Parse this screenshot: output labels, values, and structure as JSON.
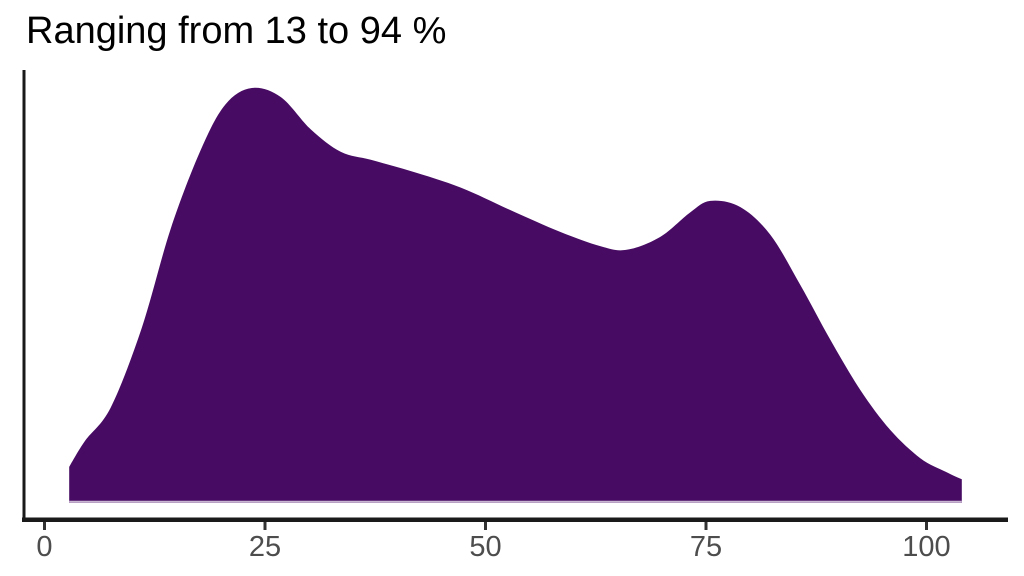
{
  "title": "Ranging from 13 to 94 %",
  "colors": {
    "background": "#ffffff",
    "density_fill": "#470b63",
    "density_bottom_edge": "#c9b6d3",
    "axis_line": "#1a1a1a",
    "tick_mark": "#333333",
    "tick_label": "#4d4d4d",
    "title_text": "#000000"
  },
  "chart_data": {
    "type": "area",
    "subtype": "density",
    "title": "Ranging from 13 to 94 %",
    "xlabel": "",
    "ylabel": "",
    "x_ticks": [
      0,
      25,
      50,
      75,
      100
    ],
    "x_axis_visible_range": [
      -2.5,
      109
    ],
    "value_range_from_title_pct": [
      13,
      94
    ],
    "grid": false,
    "legend": "none",
    "y_axis_labels": "none",
    "points_x_vs_relative_density": [
      [
        2.8,
        0.087
      ],
      [
        4.6,
        0.15
      ],
      [
        7.5,
        0.23
      ],
      [
        11.0,
        0.42
      ],
      [
        14.3,
        0.66
      ],
      [
        17.7,
        0.85
      ],
      [
        20.5,
        0.96
      ],
      [
        23.5,
        1.0
      ],
      [
        26.8,
        0.978
      ],
      [
        30.2,
        0.9
      ],
      [
        33.6,
        0.846
      ],
      [
        37.0,
        0.827
      ],
      [
        41.5,
        0.8
      ],
      [
        47.2,
        0.76
      ],
      [
        52.8,
        0.706
      ],
      [
        58.5,
        0.653
      ],
      [
        63.0,
        0.619
      ],
      [
        66.0,
        0.61
      ],
      [
        69.8,
        0.641
      ],
      [
        73.2,
        0.7
      ],
      [
        75.5,
        0.728
      ],
      [
        78.9,
        0.713
      ],
      [
        82.3,
        0.646
      ],
      [
        85.7,
        0.525
      ],
      [
        89.1,
        0.393
      ],
      [
        92.5,
        0.272
      ],
      [
        95.9,
        0.176
      ],
      [
        99.3,
        0.108
      ],
      [
        102.2,
        0.075
      ],
      [
        104.0,
        0.057
      ]
    ]
  }
}
